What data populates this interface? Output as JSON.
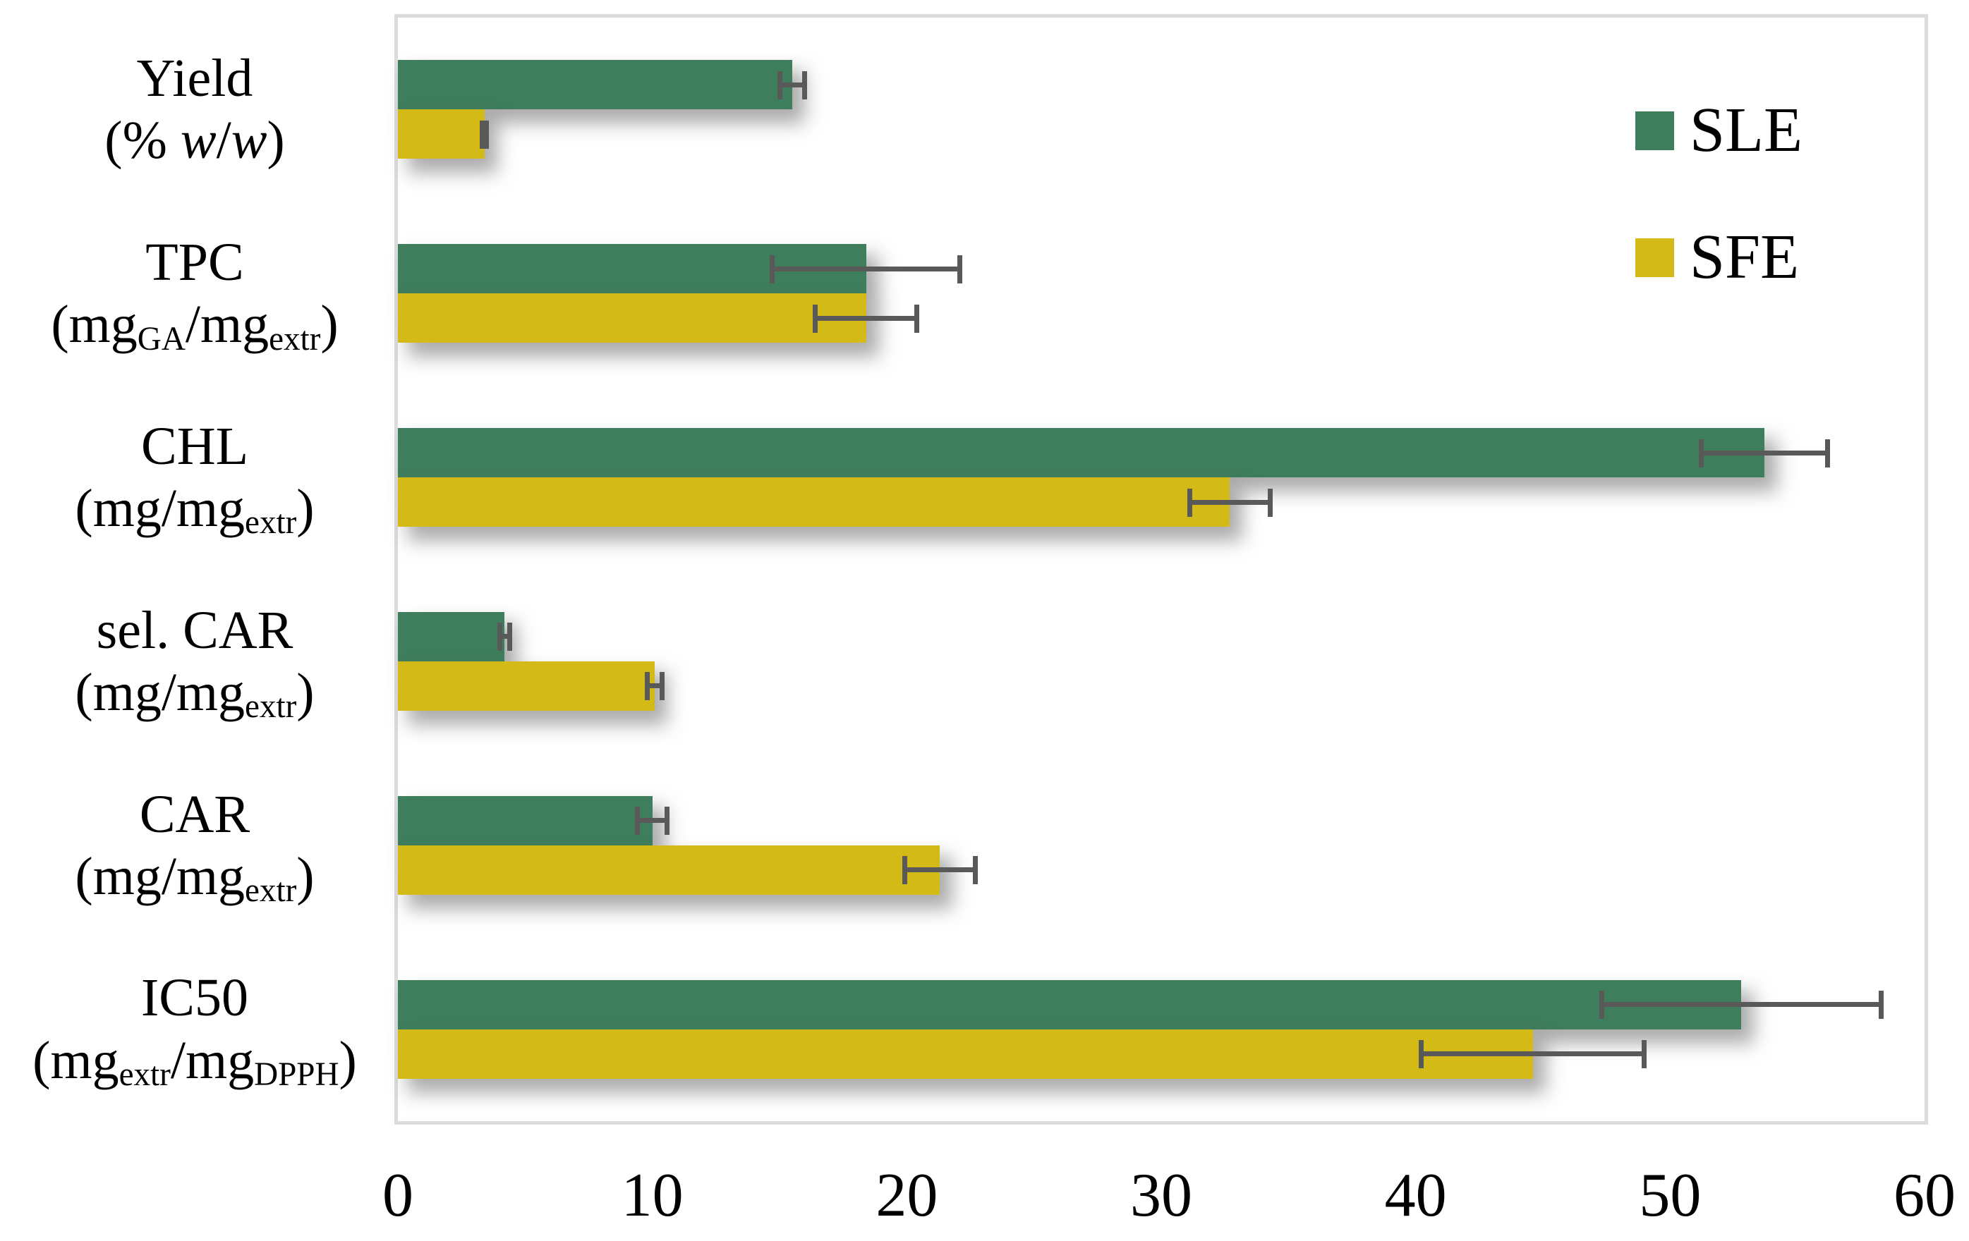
{
  "chart_data": {
    "type": "bar",
    "orientation": "horizontal",
    "title": "",
    "xlabel": "",
    "ylabel": "",
    "xlim": [
      0,
      60
    ],
    "xticks": [
      0,
      10,
      20,
      30,
      40,
      50,
      60
    ],
    "grid": false,
    "legend_position": "top-right",
    "categories": [
      {
        "line1": "Yield",
        "line2": [
          {
            "t": "(% "
          },
          {
            "i": "w"
          },
          {
            "t": "/"
          },
          {
            "i": "w"
          },
          {
            "t": ")"
          }
        ]
      },
      {
        "line1": "TPC",
        "line2": [
          {
            "t": "(mg"
          },
          {
            "s": "GA"
          },
          {
            "t": "/mg"
          },
          {
            "s": "extr"
          },
          {
            "t": ")"
          }
        ]
      },
      {
        "line1": "CHL",
        "line2": [
          {
            "t": "(mg/mg"
          },
          {
            "s": "extr"
          },
          {
            "t": ")"
          }
        ]
      },
      {
        "line1": "sel. CAR",
        "line2": [
          {
            "t": "(mg/mg"
          },
          {
            "s": "extr"
          },
          {
            "t": ")"
          }
        ]
      },
      {
        "line1": "CAR",
        "line2": [
          {
            "t": "(mg/mg"
          },
          {
            "s": "extr"
          },
          {
            "t": ")"
          }
        ]
      },
      {
        "line1": "IC50",
        "line2": [
          {
            "t": "(mg"
          },
          {
            "s": "extr"
          },
          {
            "t": "/mg"
          },
          {
            "s": "DPPH"
          },
          {
            "t": ")"
          }
        ]
      }
    ],
    "series": [
      {
        "name": "SLE",
        "color": "#3e7e5c",
        "values": [
          15.5,
          18.4,
          53.7,
          4.2,
          10.0,
          52.8
        ],
        "errors": [
          0.5,
          3.7,
          2.5,
          0.2,
          0.6,
          5.5
        ]
      },
      {
        "name": "SFE",
        "color": "#d4ba16",
        "values": [
          3.4,
          18.4,
          32.7,
          10.1,
          21.3,
          44.6
        ],
        "errors": [
          0.1,
          2.0,
          1.6,
          0.3,
          1.4,
          4.4
        ]
      }
    ]
  },
  "styles": {
    "error_bar_color": "#595959",
    "frame_color": "#dcdcdc",
    "background": "#ffffff",
    "text_color": "#000000"
  }
}
